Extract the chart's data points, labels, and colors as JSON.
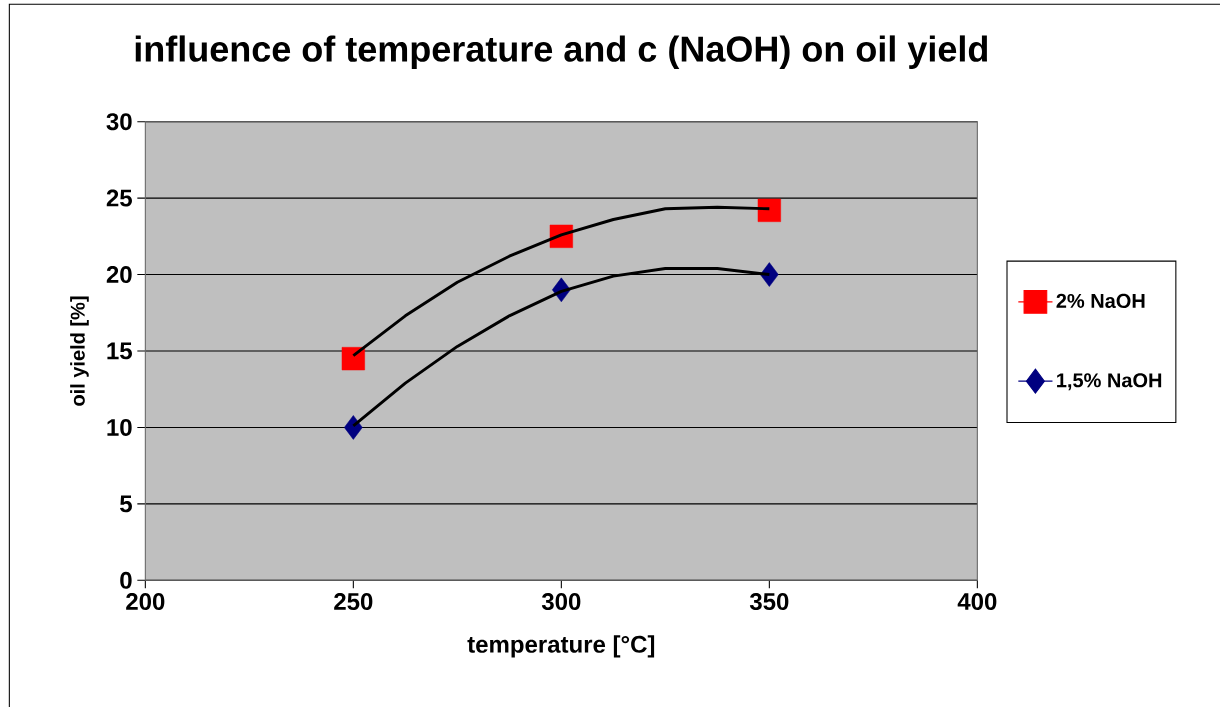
{
  "chart_data": {
    "type": "scatter",
    "title": "influence of temperature and c (NaOH) on oil yield",
    "xlabel": "temperature [°C]",
    "ylabel": "oil yield [%]",
    "xlim": [
      200,
      400
    ],
    "xticks": [
      200,
      250,
      300,
      350,
      400
    ],
    "ylim": [
      0,
      30
    ],
    "yticks": [
      0,
      5,
      10,
      15,
      20,
      25,
      30
    ],
    "grid": "y",
    "legend": "right",
    "series": [
      {
        "name": "2% NaOH",
        "color": "#ff0000",
        "marker": "square",
        "x": [
          250,
          300,
          350
        ],
        "values": [
          14.5,
          22.5,
          24.2
        ]
      },
      {
        "name": "1,5% NaOH",
        "color": "#000080",
        "marker": "diamond",
        "x": [
          250,
          300,
          350
        ],
        "values": [
          10,
          19,
          20
        ]
      },
      {
        "type": "line",
        "color": "#000000",
        "x": [
          250,
          262.5,
          275,
          287.5,
          300,
          312.5,
          325,
          337.5,
          350
        ],
        "values": [
          14.7,
          17.3,
          19.5,
          21.2,
          22.6,
          23.6,
          24.3,
          24.4,
          24.3
        ]
      },
      {
        "type": "line",
        "color": "#000000",
        "x": [
          250,
          262.5,
          275,
          287.5,
          300,
          312.5,
          325,
          337.5,
          350
        ],
        "values": [
          10.1,
          12.9,
          15.3,
          17.3,
          18.9,
          19.9,
          20.4,
          20.4,
          20.0
        ]
      }
    ]
  }
}
